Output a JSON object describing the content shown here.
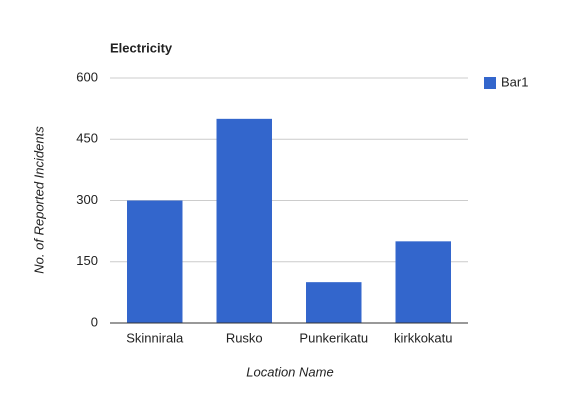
{
  "chart_data": {
    "type": "bar",
    "title": "Electricity",
    "x_label": "Location Name",
    "y_label": "No. of Reported Incidents",
    "categories": [
      "Skinnirala",
      "Rusko",
      "Punkerikatu",
      "kirkkokatu"
    ],
    "series": [
      {
        "name": "Bar1",
        "color": "#3366cc",
        "values": [
          300,
          500,
          100,
          200
        ]
      }
    ],
    "ylim": [
      0,
      600
    ],
    "yticks": [
      0,
      150,
      300,
      450,
      600
    ],
    "grid": true,
    "legend": "right"
  }
}
